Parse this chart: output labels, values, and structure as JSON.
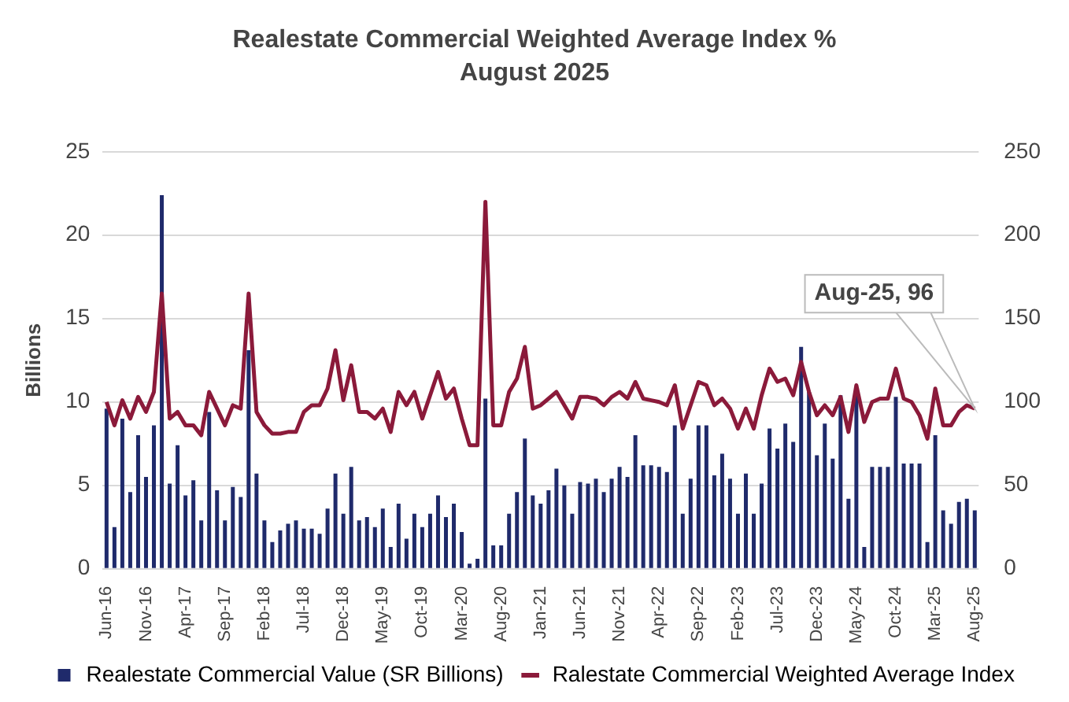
{
  "chart_data": {
    "type": "bar",
    "title": "Realestate Commercial Weighted Average Index %",
    "subtitle": "August 2025",
    "ylabel": "Billions",
    "categories": [
      "Jun-16",
      null,
      null,
      null,
      null,
      "Nov-16",
      null,
      null,
      null,
      null,
      "Apr-17",
      null,
      null,
      null,
      null,
      "Sep-17",
      null,
      null,
      null,
      null,
      "Feb-18",
      null,
      null,
      null,
      null,
      "Jul-18",
      null,
      null,
      null,
      null,
      "Dec-18",
      null,
      null,
      null,
      null,
      "May-19",
      null,
      null,
      null,
      null,
      "Oct-19",
      null,
      null,
      null,
      null,
      "Mar-20",
      null,
      null,
      null,
      null,
      "Aug-20",
      null,
      null,
      null,
      null,
      "Jan-21",
      null,
      null,
      null,
      null,
      "Jun-21",
      null,
      null,
      null,
      null,
      "Nov-21",
      null,
      null,
      null,
      null,
      "Apr-22",
      null,
      null,
      null,
      null,
      "Sep-22",
      null,
      null,
      null,
      null,
      "Feb-23",
      null,
      null,
      null,
      null,
      "Jul-23",
      null,
      null,
      null,
      null,
      "Dec-23",
      null,
      null,
      null,
      null,
      "May-24",
      null,
      null,
      null,
      null,
      "Oct-24",
      null,
      null,
      null,
      null,
      "Mar-25",
      null,
      null,
      null,
      null,
      "Aug-25"
    ],
    "series": [
      {
        "name": "Realestate Commercial Value (SR Billions)",
        "color": "#1f2a6b",
        "values": [
          9.6,
          2.5,
          9.0,
          4.6,
          8.0,
          5.5,
          8.6,
          22.4,
          5.1,
          7.4,
          4.4,
          5.3,
          2.9,
          9.4,
          4.7,
          2.9,
          4.9,
          4.3,
          13.1,
          5.7,
          2.9,
          1.6,
          2.3,
          2.7,
          2.9,
          2.4,
          2.4,
          2.1,
          3.6,
          5.7,
          3.3,
          6.1,
          2.9,
          3.1,
          2.5,
          3.6,
          1.3,
          3.9,
          1.8,
          3.3,
          2.5,
          3.3,
          4.4,
          3.1,
          3.9,
          2.2,
          0.3,
          0.6,
          10.2,
          1.4,
          1.4,
          3.3,
          4.6,
          7.8,
          4.4,
          3.9,
          4.7,
          6.0,
          5.0,
          3.3,
          5.2,
          5.1,
          5.4,
          4.6,
          5.4,
          6.1,
          5.5,
          8.0,
          6.2,
          6.2,
          6.1,
          5.8,
          8.6,
          3.3,
          5.4,
          8.6,
          8.6,
          5.6,
          6.9,
          5.4,
          3.3,
          5.7,
          3.3,
          5.1,
          8.4,
          7.2,
          8.7,
          7.6,
          13.3,
          10.6,
          6.8,
          8.7,
          6.6,
          10.4,
          4.2,
          10.6,
          1.3,
          6.1,
          6.1,
          6.1,
          10.3,
          6.3,
          6.3,
          6.3,
          1.6,
          8.0,
          3.5,
          2.7,
          4.0,
          4.2,
          3.5
        ]
      },
      {
        "name": "Ralestate Commercial Weighted Average Index",
        "type": "line",
        "axis": "y2",
        "color": "#8b1a3a",
        "values": [
          100,
          86,
          101,
          90,
          103,
          94,
          106,
          165,
          90,
          94,
          86,
          86,
          80,
          106,
          96,
          86,
          98,
          96,
          165,
          94,
          86,
          81,
          81,
          82,
          82,
          94,
          98,
          98,
          108,
          131,
          101,
          122,
          94,
          94,
          90,
          96,
          82,
          106,
          98,
          106,
          90,
          104,
          118,
          102,
          108,
          90,
          74,
          74,
          220,
          86,
          86,
          106,
          114,
          133,
          96,
          98,
          102,
          106,
          98,
          90,
          103,
          103,
          102,
          98,
          103,
          106,
          102,
          112,
          102,
          101,
          100,
          98,
          110,
          84,
          98,
          112,
          110,
          98,
          102,
          96,
          84,
          96,
          84,
          104,
          120,
          112,
          114,
          104,
          124,
          106,
          92,
          98,
          92,
          103,
          82,
          110,
          88,
          100,
          102,
          102,
          120,
          102,
          100,
          92,
          78,
          108,
          86,
          86,
          94,
          98,
          96
        ]
      }
    ],
    "ylim": [
      0,
      25
    ],
    "yticks": [
      0,
      5,
      10,
      15,
      20,
      25
    ],
    "y2lim": [
      0,
      250
    ],
    "y2ticks": [
      0,
      50,
      100,
      150,
      200,
      250
    ],
    "grid": "y",
    "legend": "bottom",
    "marker": "none",
    "line_style": "solid",
    "annotations": [
      "Aug-25, 96"
    ]
  }
}
